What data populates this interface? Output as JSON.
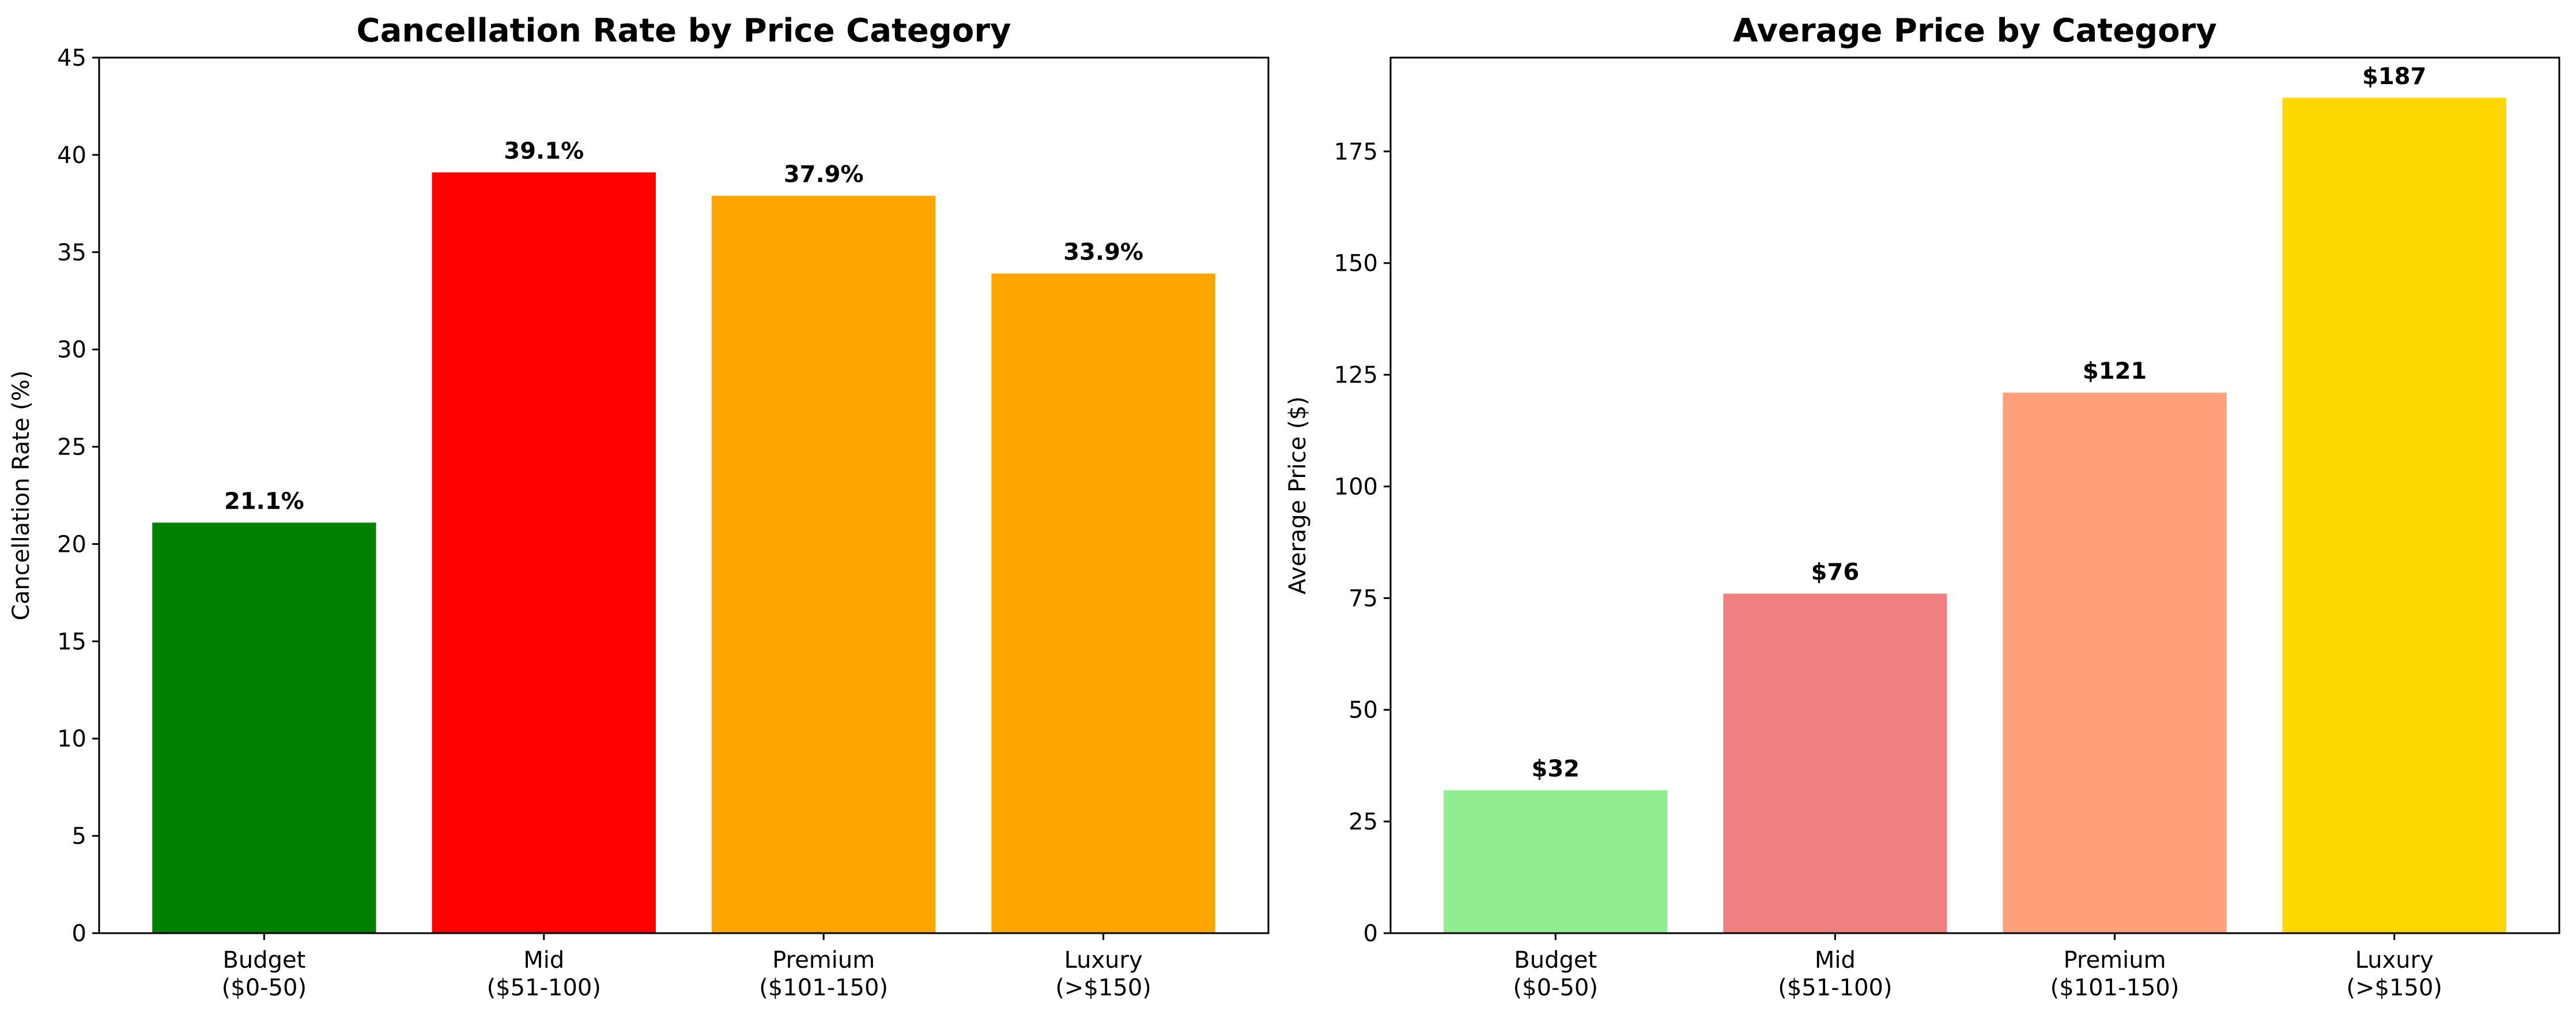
{
  "chart_data": [
    {
      "type": "bar",
      "title": "Cancellation Rate by Price Category",
      "xlabel": "",
      "ylabel": "Cancellation Rate (%)",
      "categories": [
        "Budget\n($0-50)",
        "Mid\n($51-100)",
        "Premium\n($101-150)",
        "Luxury\n(>$150)"
      ],
      "values": [
        21.1,
        39.1,
        37.9,
        33.9
      ],
      "value_labels": [
        "21.1%",
        "39.1%",
        "37.9%",
        "33.9%"
      ],
      "colors": [
        "#008000",
        "#ff0000",
        "#ffa500",
        "#ffa500"
      ],
      "ylim": [
        0,
        45
      ],
      "yticks": [
        0,
        5,
        10,
        15,
        20,
        25,
        30,
        35,
        40,
        45
      ],
      "grid": false,
      "legend": "none"
    },
    {
      "type": "bar",
      "title": "Average Price by Category",
      "xlabel": "",
      "ylabel": "Average Price ($)",
      "categories": [
        "Budget\n($0-50)",
        "Mid\n($51-100)",
        "Premium\n($101-150)",
        "Luxury\n(>$150)"
      ],
      "values": [
        32,
        76,
        121,
        187
      ],
      "value_labels": [
        "$32",
        "$76",
        "$121",
        "$187"
      ],
      "colors": [
        "#90ee90",
        "#f08080",
        "#ffa07a",
        "#ffd700"
      ],
      "ylim": [
        0,
        196
      ],
      "yticks": [
        0,
        25,
        50,
        75,
        100,
        125,
        150,
        175
      ],
      "grid": false,
      "legend": "none"
    }
  ]
}
